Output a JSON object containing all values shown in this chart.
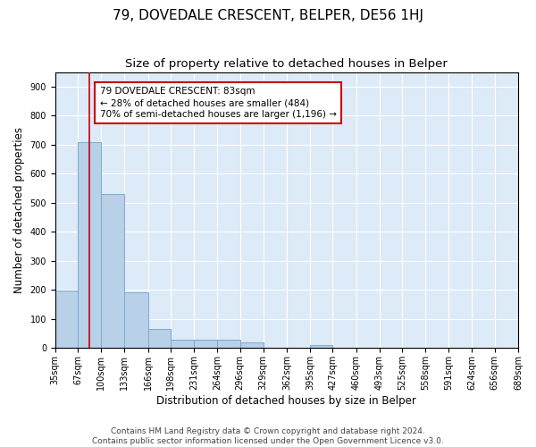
{
  "title": "79, DOVEDALE CRESCENT, BELPER, DE56 1HJ",
  "subtitle": "Size of property relative to detached houses in Belper",
  "xlabel": "Distribution of detached houses by size in Belper",
  "ylabel": "Number of detached properties",
  "footer_line1": "Contains HM Land Registry data © Crown copyright and database right 2024.",
  "footer_line2": "Contains public sector information licensed under the Open Government Licence v3.0.",
  "bar_values": [
    197,
    710,
    530,
    192,
    65,
    30,
    30,
    30,
    20,
    0,
    0,
    10,
    0,
    0,
    0,
    0,
    0,
    0,
    0,
    0
  ],
  "bin_edges": [
    35,
    67,
    100,
    133,
    166,
    198,
    231,
    264,
    296,
    329,
    362,
    395,
    427,
    460,
    493,
    525,
    558,
    591,
    624,
    656,
    689
  ],
  "tick_labels": [
    "35sqm",
    "67sqm",
    "100sqm",
    "133sqm",
    "166sqm",
    "198sqm",
    "231sqm",
    "264sqm",
    "296sqm",
    "329sqm",
    "362sqm",
    "395sqm",
    "427sqm",
    "460sqm",
    "493sqm",
    "525sqm",
    "558sqm",
    "591sqm",
    "624sqm",
    "656sqm",
    "689sqm"
  ],
  "bar_color": "#b8d0e8",
  "bar_edge_color": "#7aacd0",
  "red_line_x": 83,
  "annotation_line1": "79 DOVEDALE CRESCENT: 83sqm",
  "annotation_line2": "← 28% of detached houses are smaller (484)",
  "annotation_line3": "70% of semi-detached houses are larger (1,196) →",
  "annotation_box_color": "#ffffff",
  "annotation_border_color": "#cc0000",
  "ylim": [
    0,
    950
  ],
  "yticks": [
    0,
    100,
    200,
    300,
    400,
    500,
    600,
    700,
    800,
    900
  ],
  "background_color": "#ddeaf7",
  "grid_color": "#ffffff",
  "title_fontsize": 11,
  "subtitle_fontsize": 9.5,
  "axis_label_fontsize": 8.5,
  "tick_fontsize": 7,
  "footer_fontsize": 6.5,
  "annotation_fontsize": 7.5
}
